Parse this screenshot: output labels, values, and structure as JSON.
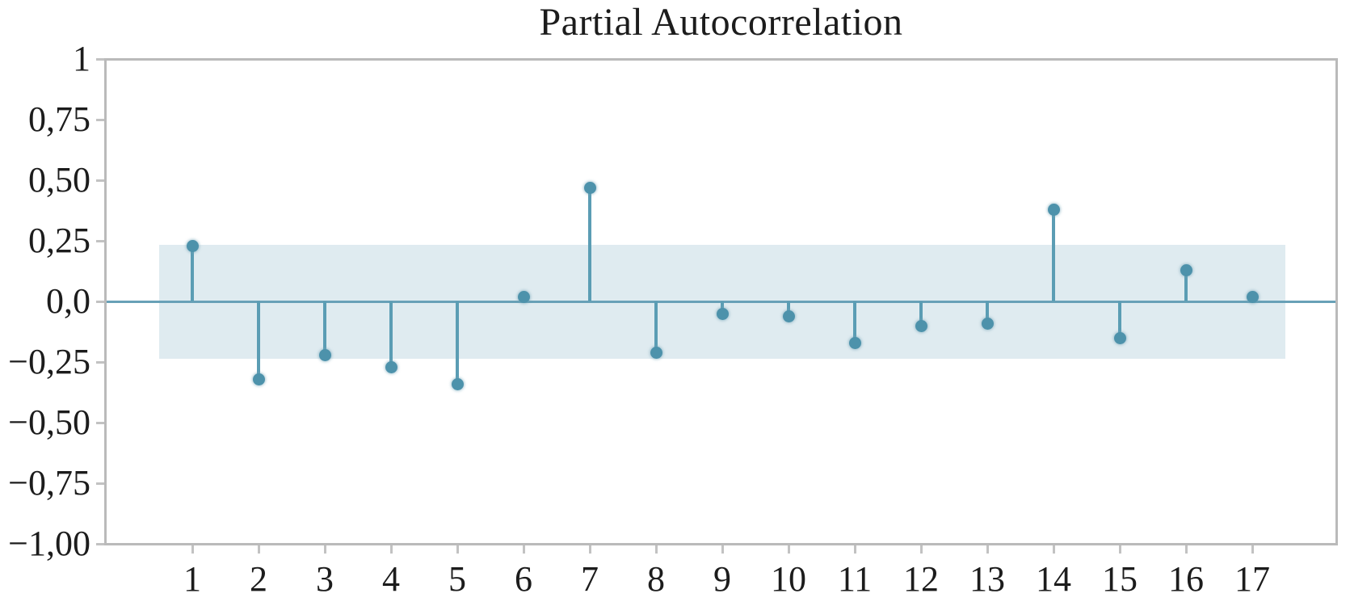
{
  "chart_data": {
    "type": "stem",
    "title": "Partial Autocorrelation",
    "xlabel": "",
    "ylabel": "",
    "x": [
      1,
      2,
      3,
      4,
      5,
      6,
      7,
      8,
      9,
      10,
      11,
      12,
      13,
      14,
      15,
      16,
      17
    ],
    "values": [
      0.23,
      -0.32,
      -0.22,
      -0.27,
      -0.34,
      0.02,
      0.47,
      -0.21,
      -0.05,
      -0.06,
      -0.17,
      -0.1,
      -0.09,
      0.38,
      -0.15,
      0.13,
      0.02
    ],
    "confidence_band": {
      "lower": -0.235,
      "upper": 0.235
    },
    "ylim": [
      -1,
      1
    ],
    "xlim_lags": [
      0.5,
      17.5
    ],
    "grid": false,
    "legend": "none",
    "yticks": [
      {
        "value": 1,
        "label": "1"
      },
      {
        "value": 0.75,
        "label": "0,75"
      },
      {
        "value": 0.5,
        "label": "0,50"
      },
      {
        "value": 0.25,
        "label": "0,25"
      },
      {
        "value": 0,
        "label": "0,0"
      },
      {
        "value": -0.25,
        "label": "−0,25"
      },
      {
        "value": -0.5,
        "label": "−0,50"
      },
      {
        "value": -0.75,
        "label": "−0,75"
      },
      {
        "value": -1,
        "label": "−1,00"
      }
    ],
    "xticks": [
      "1",
      "2",
      "3",
      "4",
      "5",
      "6",
      "7",
      "8",
      "9",
      "10",
      "11",
      "12",
      "13",
      "14",
      "15",
      "16",
      "17"
    ],
    "colors": {
      "stem": "#5b9db4",
      "marker": "#4d92ab",
      "band": "#d9e8ed",
      "zero_line": "#68a1b7",
      "frame": "#bababa",
      "text": "#1c1c1c"
    }
  }
}
